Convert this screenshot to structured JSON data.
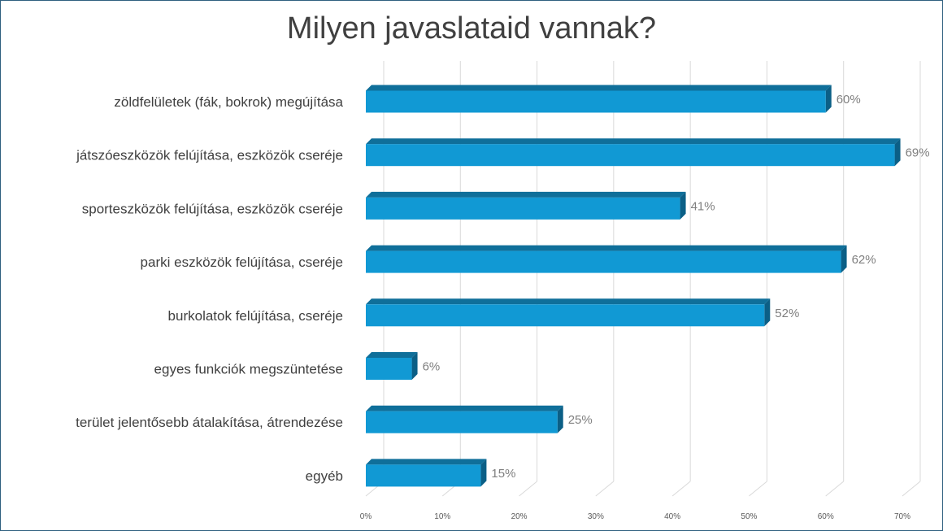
{
  "chart_data": {
    "type": "bar",
    "orientation": "horizontal",
    "style": "3d-clustered",
    "title": "Milyen javaslataid vannak?",
    "categories": [
      "zöldfelületek (fák, bokrok) megújítása",
      "játszóeszközök felújítása, eszközök cseréje",
      "sporteszközök felújítása, eszközök cseréje",
      "parki eszközök felújítása, cseréje",
      "burkolatok felújítása, cseréje",
      "egyes funkciók megszüntetése",
      "terület jelentősebb átalakítása, átrendezése",
      "egyéb"
    ],
    "values": [
      60,
      69,
      41,
      62,
      52,
      6,
      25,
      15
    ],
    "value_labels": [
      "60%",
      "69%",
      "41%",
      "62%",
      "52%",
      "6%",
      "25%",
      "15%"
    ],
    "xlim": [
      0,
      70
    ],
    "x_ticks": [
      0,
      10,
      20,
      30,
      40,
      50,
      60,
      70
    ],
    "x_tick_labels": [
      "0%",
      "10%",
      "20%",
      "30%",
      "40%",
      "50%",
      "60%",
      "70%"
    ],
    "grid": true,
    "colors": {
      "bar_front": "#1199d4",
      "bar_top": "#0f6f9a",
      "bar_side": "#0b5f86",
      "grid": "#d9d9d9"
    }
  }
}
